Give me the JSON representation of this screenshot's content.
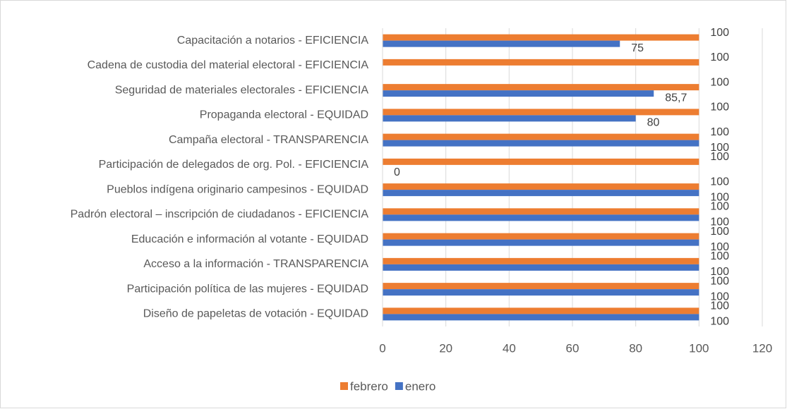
{
  "chart_data": {
    "type": "bar",
    "orientation": "horizontal",
    "categories": [
      "Capacitación a notarios - EFICIENCIA",
      "Cadena de custodia del material electoral - EFICIENCIA",
      "Seguridad de materiales electorales - EFICIENCIA",
      "Propaganda electoral - EQUIDAD",
      "Campaña electoral - TRANSPARENCIA",
      "Participación de delegados de org. Pol. - EFICIENCIA",
      "Pueblos indígena originario campesinos - EQUIDAD",
      "Padrón electoral – inscripción de ciudadanos - EFICIENCIA",
      "Educación e información al votante - EQUIDAD",
      "Acceso a la información - TRANSPARENCIA",
      "Participación política de las mujeres - EQUIDAD",
      "Diseño de papeletas de votación - EQUIDAD"
    ],
    "series": [
      {
        "name": "febrero",
        "color": "#ed7d31",
        "values": [
          100,
          100,
          100,
          100,
          100,
          100,
          100,
          100,
          100,
          100,
          100,
          100
        ]
      },
      {
        "name": "enero",
        "color": "#4472c4",
        "values": [
          75,
          null,
          85.7,
          80,
          100,
          0,
          100,
          100,
          100,
          100,
          100,
          100
        ],
        "value_labels": [
          "75",
          null,
          "85,7",
          "80",
          "100",
          "0",
          "100",
          "100",
          "100",
          "100",
          "100",
          "100"
        ]
      }
    ],
    "xlim": [
      0,
      120
    ],
    "xticks": [
      0,
      20,
      40,
      60,
      80,
      100,
      120
    ],
    "grid": true,
    "legend": "bottom"
  }
}
